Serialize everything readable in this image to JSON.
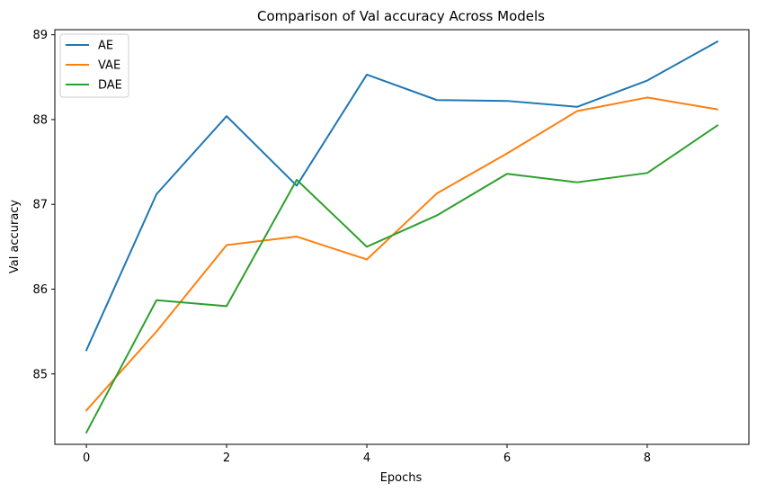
{
  "chart_data": {
    "type": "line",
    "title": "Comparison of Val accuracy Across Models",
    "xlabel": "Epochs",
    "ylabel": "Val accuracy",
    "x": [
      0,
      1,
      2,
      3,
      4,
      5,
      6,
      7,
      8,
      9
    ],
    "xticks": [
      0,
      2,
      4,
      6,
      8
    ],
    "yticks": [
      85,
      86,
      87,
      88,
      89
    ],
    "xlim": [
      -0.45,
      9.45
    ],
    "ylim": [
      84.17,
      89.06
    ],
    "grid": false,
    "legend_position": "top-left",
    "series": [
      {
        "name": "AE",
        "color": "#1f77b4",
        "values": [
          85.28,
          87.12,
          88.04,
          87.22,
          88.53,
          88.23,
          88.22,
          88.15,
          88.46,
          88.92
        ]
      },
      {
        "name": "VAE",
        "color": "#ff7f0e",
        "values": [
          84.57,
          85.5,
          86.52,
          86.62,
          86.35,
          87.13,
          87.6,
          88.1,
          88.26,
          88.12
        ]
      },
      {
        "name": "DAE",
        "color": "#2ca02c",
        "values": [
          84.31,
          85.87,
          85.8,
          87.29,
          86.5,
          86.87,
          87.36,
          87.26,
          87.37,
          87.93
        ]
      }
    ]
  }
}
